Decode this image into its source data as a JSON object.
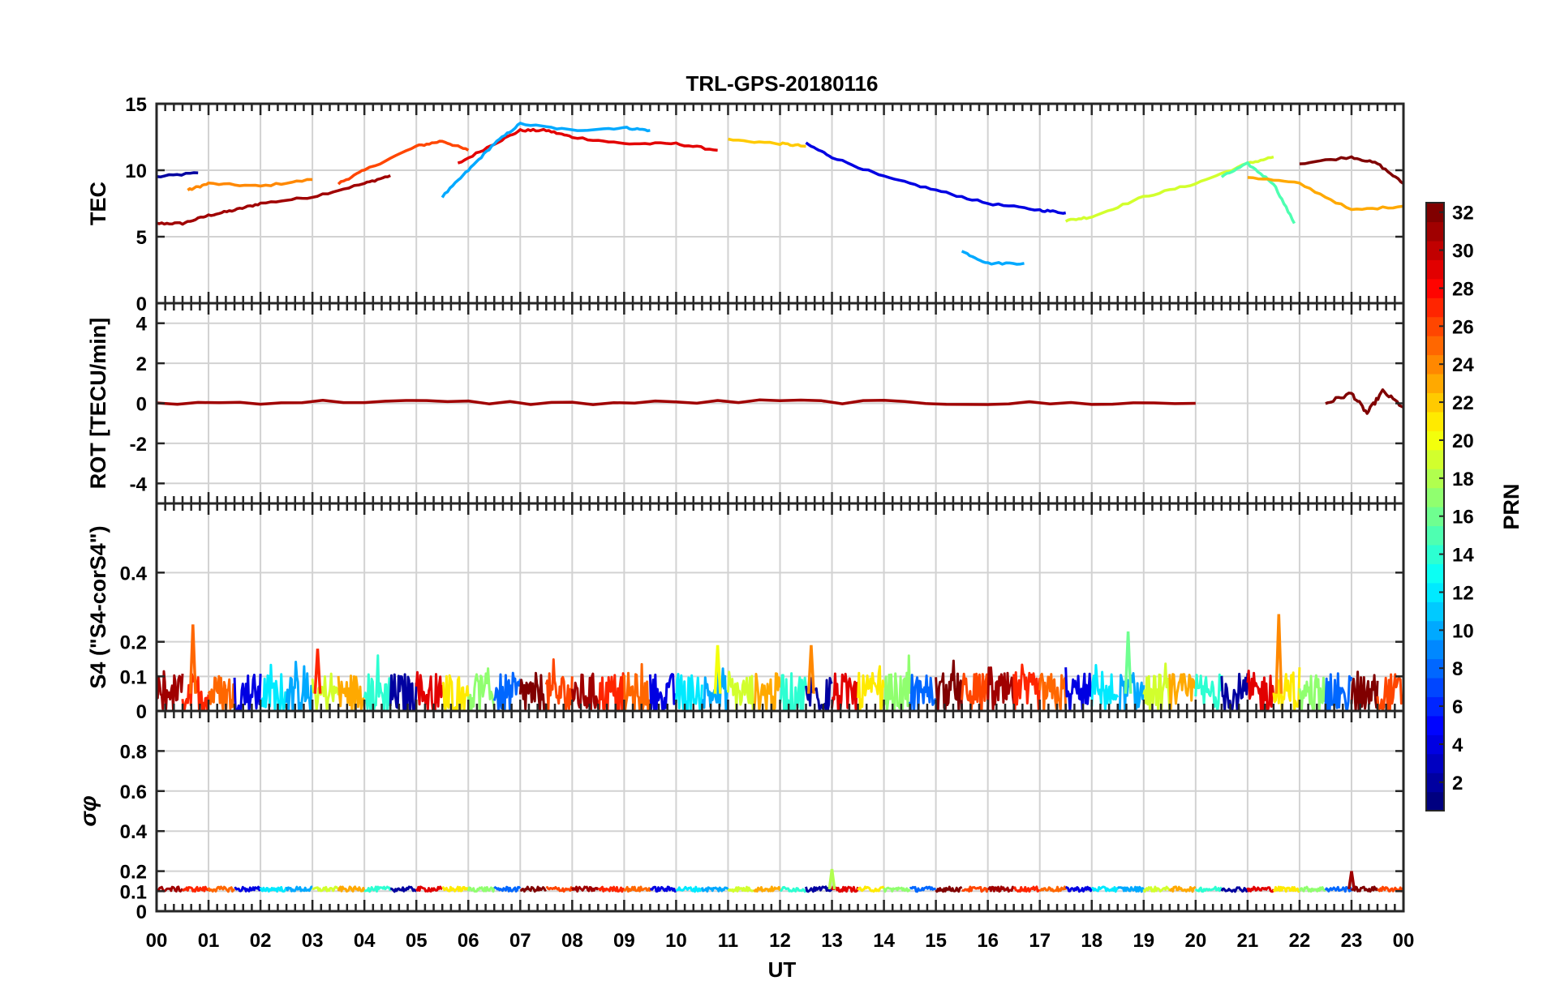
{
  "chart_data": [
    {
      "type": "line",
      "title": "TRL-GPS-20180116",
      "ylabel": "TEC",
      "xlabel": "UT",
      "ylim": [
        0,
        15
      ],
      "yticks": [
        0,
        5,
        10,
        15
      ],
      "grid": true,
      "series": [
        {
          "name": "PRN 2",
          "prn": 2,
          "x": [
            0.0,
            0.8
          ],
          "values": [
            9.5,
            9.8
          ]
        },
        {
          "name": "PRN 31",
          "prn": 31,
          "x": [
            0.0,
            0.5,
            1.0,
            1.5,
            2.0,
            3.0,
            4.0,
            4.5
          ],
          "values": [
            6.0,
            6.0,
            6.6,
            7.0,
            7.5,
            8.0,
            9.0,
            9.6
          ]
        },
        {
          "name": "PRN 24",
          "prn": 24,
          "x": [
            0.6,
            1.0,
            2.0,
            3.0
          ],
          "values": [
            8.5,
            9.0,
            8.8,
            9.3
          ]
        },
        {
          "name": "PRN 26",
          "prn": 26,
          "x": [
            3.5,
            4.0,
            5.0,
            5.5,
            6.0
          ],
          "values": [
            9.0,
            10.0,
            11.8,
            12.2,
            11.5
          ]
        },
        {
          "name": "PRN 29",
          "prn": 29,
          "x": [
            5.8,
            6.5,
            7.0,
            7.5,
            8.0,
            9.0,
            10.0,
            10.8
          ],
          "values": [
            10.5,
            12.0,
            13.0,
            13.0,
            12.5,
            12.0,
            12.0,
            11.5
          ]
        },
        {
          "name": "PRN 10",
          "prn": 10,
          "x": [
            5.5,
            6.0,
            6.5,
            7.0,
            8.0,
            9.0,
            9.5
          ],
          "values": [
            8.0,
            10.0,
            12.0,
            13.5,
            13.0,
            13.2,
            13.0
          ]
        },
        {
          "name": "PRN 22",
          "prn": 22,
          "x": [
            11.0,
            12.0,
            12.5
          ],
          "values": [
            12.3,
            12.0,
            11.8
          ]
        },
        {
          "name": "PRN 4",
          "prn": 4,
          "x": [
            12.5,
            13.0,
            14.0,
            15.0,
            16.0,
            17.0,
            17.5
          ],
          "values": [
            12.0,
            11.0,
            9.5,
            8.5,
            7.5,
            7.0,
            6.8
          ]
        },
        {
          "name": "PRN 10",
          "prn": 10,
          "x": [
            15.5,
            16.0,
            16.7
          ],
          "values": [
            3.9,
            3.0,
            3.0
          ]
        },
        {
          "name": "PRN 19",
          "prn": 19,
          "x": [
            17.5,
            18.0,
            19.0,
            20.0,
            21.0,
            21.5
          ],
          "values": [
            6.2,
            6.5,
            8.0,
            9.0,
            10.5,
            11.0
          ]
        },
        {
          "name": "PRN 15",
          "prn": 15,
          "x": [
            20.5,
            21.0,
            21.5,
            21.9
          ],
          "values": [
            9.5,
            10.5,
            9.0,
            6.0
          ]
        },
        {
          "name": "PRN 23",
          "prn": 23,
          "x": [
            21.0,
            22.0,
            23.0,
            24.0
          ],
          "values": [
            9.5,
            9.0,
            7.0,
            7.3
          ]
        },
        {
          "name": "PRN 32",
          "prn": 32,
          "x": [
            22.0,
            23.0,
            23.5,
            24.0
          ],
          "values": [
            10.5,
            11.0,
            10.5,
            9.0
          ]
        }
      ]
    },
    {
      "type": "line",
      "ylabel": "ROT [TECU/min]",
      "xlabel": "UT",
      "ylim": [
        -5,
        5
      ],
      "yticks": [
        -4,
        -2,
        0,
        2,
        4
      ],
      "grid": true,
      "series": [
        {
          "name": "PRN 31",
          "prn": 31,
          "x": [
            0.0,
            4.0,
            8.0,
            12.0,
            16.0,
            20.0
          ],
          "values": [
            0.0,
            0.1,
            0.0,
            0.1,
            0.0,
            0.0
          ]
        },
        {
          "name": "PRN 32",
          "prn": 32,
          "x": [
            22.5,
            23.0,
            23.3,
            23.6,
            24.0
          ],
          "values": [
            0.0,
            0.5,
            -0.5,
            0.6,
            -0.2
          ]
        }
      ]
    },
    {
      "type": "line",
      "ylabel": "S4 (\"S4-corS4\")",
      "xlabel": "UT",
      "ylim": [
        0,
        0.6
      ],
      "yticks": [
        0,
        0.1,
        0.2,
        0.4
      ],
      "grid": true,
      "baseline": 0.05,
      "spikes": [
        {
          "prn": 25,
          "x": 0.7,
          "value": 0.25
        },
        {
          "prn": 27,
          "x": 3.1,
          "value": 0.18
        },
        {
          "prn": 20,
          "x": 10.8,
          "value": 0.19
        },
        {
          "prn": 24,
          "x": 12.6,
          "value": 0.19
        },
        {
          "prn": 16,
          "x": 18.7,
          "value": 0.23
        },
        {
          "prn": 24,
          "x": 21.6,
          "value": 0.28
        }
      ]
    },
    {
      "type": "line",
      "ylabel": "σφ",
      "xlabel": "UT",
      "ylim": [
        0,
        1
      ],
      "yticks": [
        0,
        0.1,
        0.2,
        0.4,
        0.6,
        0.8
      ],
      "grid": true,
      "baseline": 0.11,
      "spikes": [
        {
          "prn": 18,
          "x": 13.0,
          "value": 0.21
        },
        {
          "prn": 31,
          "x": 23.0,
          "value": 0.2
        }
      ]
    }
  ],
  "x_axis": {
    "label": "UT",
    "range": [
      0,
      24
    ],
    "tick_labels": [
      "00",
      "01",
      "02",
      "03",
      "04",
      "05",
      "06",
      "07",
      "08",
      "09",
      "10",
      "11",
      "12",
      "13",
      "14",
      "15",
      "16",
      "17",
      "18",
      "19",
      "20",
      "21",
      "22",
      "23",
      "00"
    ]
  },
  "colorbar": {
    "label": "PRN",
    "range": [
      1,
      32
    ],
    "tick_labels": [
      "2",
      "4",
      "6",
      "8",
      "10",
      "12",
      "14",
      "16",
      "18",
      "20",
      "22",
      "24",
      "26",
      "28",
      "30",
      "32"
    ]
  }
}
